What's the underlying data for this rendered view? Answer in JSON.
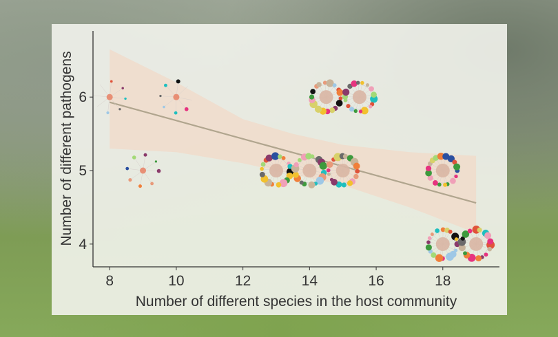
{
  "chart_data": {
    "type": "scatter",
    "title": "",
    "xlabel": "Number of different species in the host community",
    "ylabel": "Number of different pathogens",
    "xlim": [
      7.5,
      19.7
    ],
    "ylim": [
      3.69,
      6.9
    ],
    "xticks": [
      "8",
      "10",
      "12",
      "14",
      "16",
      "18"
    ],
    "yticks": [
      "4",
      "5",
      "6"
    ],
    "grid": false,
    "marker": "network-glyph",
    "points": [
      {
        "x": 8,
        "y": 6
      },
      {
        "x": 10,
        "y": 6
      },
      {
        "x": 14.5,
        "y": 6
      },
      {
        "x": 15.5,
        "y": 6
      },
      {
        "x": 9,
        "y": 5
      },
      {
        "x": 13,
        "y": 5
      },
      {
        "x": 14,
        "y": 5
      },
      {
        "x": 15,
        "y": 5
      },
      {
        "x": 18,
        "y": 5
      },
      {
        "x": 18,
        "y": 4
      },
      {
        "x": 19,
        "y": 4
      }
    ],
    "regression": {
      "x": [
        8,
        19
      ],
      "y": [
        5.93,
        4.56
      ]
    },
    "confidence_band": {
      "x": [
        8,
        10,
        12,
        13.5,
        15,
        17,
        19
      ],
      "lower": [
        5.3,
        5.25,
        5.1,
        4.95,
        4.8,
        4.5,
        4.15
      ],
      "upper": [
        6.65,
        6.2,
        5.7,
        5.5,
        5.35,
        5.25,
        5.2
      ]
    },
    "colors": {
      "line": "#b0a58e",
      "band": "#f1d9c8",
      "axis": "#333333"
    }
  }
}
